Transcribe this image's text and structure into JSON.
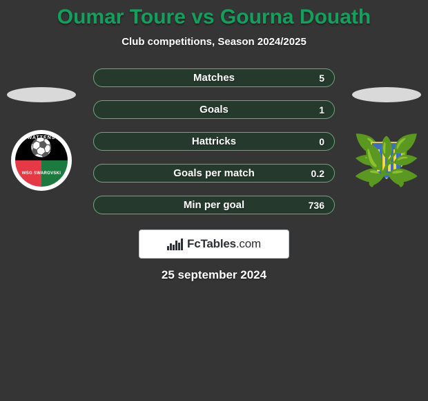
{
  "background_color": "#353535",
  "title": {
    "text": "Oumar Toure vs Gourna Douath",
    "color": "#12a05d",
    "fontsize": 30
  },
  "subtitle": {
    "text": "Club competitions, Season 2024/2025",
    "color": "#ffffff",
    "fontsize": 15
  },
  "date": {
    "text": "25 september 2024",
    "color": "#ffffff",
    "fontsize": 17
  },
  "stat_row_style": {
    "bg": "#253a2d",
    "border": "#6fa87e",
    "label_color": "#ffffff",
    "value_color": "#ffffff"
  },
  "stats": [
    {
      "label": "Matches",
      "value": "5"
    },
    {
      "label": "Goals",
      "value": "1"
    },
    {
      "label": "Hattricks",
      "value": "0"
    },
    {
      "label": "Goals per match",
      "value": "0.2"
    },
    {
      "label": "Min per goal",
      "value": "736"
    }
  ],
  "ellipses": {
    "left_color": "#d9d9d9",
    "right_color": "#d9d9d9"
  },
  "club_left": {
    "name": "WSG Swarovski Wattens",
    "ring_text_top": "WATTENS",
    "ring_text_bottom": "WSG SWAROVSKI"
  },
  "club_right": {
    "name": "Club badge"
  },
  "brand": {
    "bg": "#ffffff",
    "border": "#b9c2c9",
    "text_color": "#2b2f33",
    "icon_color": "#2b2f33",
    "text_bold": "FcTables",
    "text_thin": ".com",
    "fontsize": 17
  }
}
